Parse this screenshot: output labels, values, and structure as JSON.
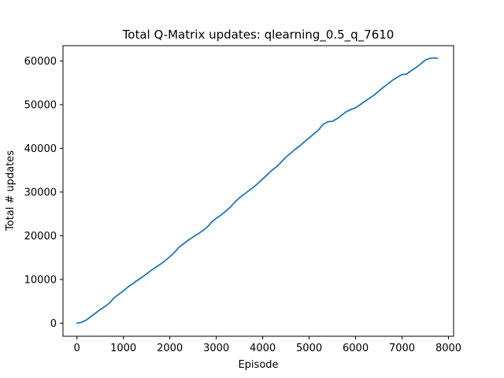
{
  "chart_data": {
    "type": "line",
    "title": "Total Q-Matrix updates: qlearning_0.5_q_7610",
    "xlabel": "Episode",
    "ylabel": "Total # updates",
    "xlim": [
      -300,
      8110
    ],
    "ylim": [
      -3000,
      63500
    ],
    "xticks": [
      0,
      1000,
      2000,
      3000,
      4000,
      5000,
      6000,
      7000,
      8000
    ],
    "yticks": [
      0,
      10000,
      20000,
      30000,
      40000,
      50000,
      60000
    ],
    "grid": false,
    "series": [
      {
        "color": "#1f77b4",
        "x": [
          0,
          100,
          200,
          300,
          400,
          500,
          600,
          700,
          800,
          900,
          1000,
          1100,
          1200,
          1300,
          1400,
          1500,
          1600,
          1700,
          1800,
          1900,
          2000,
          2100,
          2200,
          2300,
          2400,
          2500,
          2600,
          2700,
          2800,
          2900,
          3000,
          3100,
          3200,
          3300,
          3400,
          3500,
          3600,
          3700,
          3800,
          3900,
          4000,
          4100,
          4200,
          4300,
          4400,
          4500,
          4600,
          4700,
          4800,
          4900,
          5000,
          5100,
          5200,
          5300,
          5400,
          5500,
          5600,
          5700,
          5800,
          5900,
          6000,
          6100,
          6200,
          6300,
          6400,
          6500,
          6600,
          6700,
          6800,
          6900,
          7000,
          7100,
          7200,
          7300,
          7400,
          7500,
          7600,
          7700,
          7760
        ],
        "y": [
          0,
          200,
          700,
          1500,
          2300,
          3100,
          3800,
          4600,
          5800,
          6600,
          7400,
          8300,
          9000,
          9800,
          10500,
          11300,
          12100,
          12800,
          13500,
          14300,
          15200,
          16200,
          17400,
          18200,
          19000,
          19700,
          20400,
          21100,
          21900,
          23100,
          24000,
          24700,
          25600,
          26500,
          27700,
          28700,
          29500,
          30300,
          31100,
          32000,
          33000,
          34000,
          35000,
          35800,
          36900,
          38000,
          38900,
          39800,
          40600,
          41500,
          42400,
          43300,
          44200,
          45500,
          46100,
          46200,
          46800,
          47600,
          48400,
          48900,
          49300,
          50000,
          50800,
          51500,
          52200,
          53100,
          54000,
          54800,
          55600,
          56300,
          56900,
          57000,
          57800,
          58500,
          59300,
          60200,
          60600,
          60700,
          60600
        ]
      }
    ]
  }
}
